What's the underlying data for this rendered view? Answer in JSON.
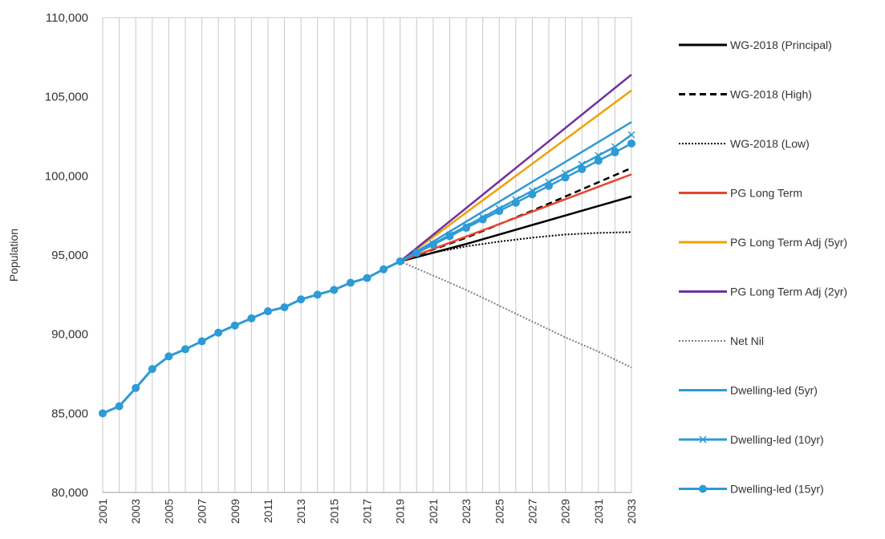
{
  "chart_data": {
    "type": "line",
    "title": "",
    "xlabel": "",
    "ylabel": "Population",
    "xlim": [
      2001,
      2033
    ],
    "ylim": [
      80000,
      110000
    ],
    "y_ticks": [
      80000,
      85000,
      90000,
      95000,
      100000,
      105000,
      110000
    ],
    "y_tick_labels": [
      "80,000",
      "85,000",
      "90,000",
      "95,000",
      "100,000",
      "105,000",
      "110,000"
    ],
    "x_tick_labels": [
      "2001",
      "2003",
      "2005",
      "2007",
      "2009",
      "2011",
      "2013",
      "2015",
      "2017",
      "2019",
      "2021",
      "2023",
      "2025",
      "2027",
      "2029",
      "2031",
      "2033"
    ],
    "grid": "vertical lines at every year",
    "legend_position": "right",
    "historic": {
      "x": [
        2001,
        2002,
        2003,
        2004,
        2005,
        2006,
        2007,
        2008,
        2009,
        2010,
        2011,
        2012,
        2013,
        2014,
        2015,
        2016,
        2017,
        2018,
        2019
      ],
      "y": [
        85000,
        85450,
        86600,
        87800,
        88600,
        89050,
        89550,
        90100,
        90550,
        91000,
        91450,
        91700,
        92200,
        92500,
        92800,
        93250,
        93550,
        94100,
        94600
      ]
    },
    "series": [
      {
        "name": "WG-2018 (Principal)",
        "color": "#000000",
        "style": "solid",
        "marker": "none",
        "x": [
          2019,
          2023,
          2027,
          2031,
          2033
        ],
        "y": [
          94600,
          95700,
          96900,
          98100,
          98700
        ]
      },
      {
        "name": "WG-2018 (High)",
        "color": "#000000",
        "style": "dashed",
        "marker": "none",
        "x": [
          2019,
          2023,
          2027,
          2031,
          2033
        ],
        "y": [
          94600,
          96100,
          97800,
          99600,
          100500
        ]
      },
      {
        "name": "WG-2018 (Low)",
        "color": "#000000",
        "style": "dotted",
        "marker": "none",
        "x": [
          2019,
          2021,
          2023,
          2025,
          2027,
          2029,
          2031,
          2033
        ],
        "y": [
          94600,
          95150,
          95550,
          95850,
          96100,
          96300,
          96400,
          96450
        ]
      },
      {
        "name": "PG Long Term",
        "color": "#e8452c",
        "style": "solid",
        "marker": "none",
        "x": [
          2019,
          2033
        ],
        "y": [
          94600,
          100100
        ]
      },
      {
        "name": "PG Long Term Adj (5yr)",
        "color": "#f0a000",
        "style": "solid",
        "marker": "none",
        "x": [
          2019,
          2033
        ],
        "y": [
          94600,
          105400
        ]
      },
      {
        "name": "PG Long Term Adj (2yr)",
        "color": "#7030a0",
        "style": "solid",
        "marker": "none",
        "x": [
          2019,
          2033
        ],
        "y": [
          94600,
          106400
        ]
      },
      {
        "name": "Net Nil",
        "color": "#808080",
        "style": "dotted",
        "marker": "none",
        "x": [
          2019,
          2021,
          2023,
          2025,
          2027,
          2029,
          2031,
          2033
        ],
        "y": [
          94600,
          93700,
          92800,
          91800,
          90800,
          89800,
          88900,
          87900
        ]
      },
      {
        "name": "Dwelling-led (5yr)",
        "color": "#2e9ad6",
        "style": "solid",
        "marker": "none",
        "x": [
          2019,
          2033
        ],
        "y": [
          94600,
          103400
        ]
      },
      {
        "name": "Dwelling-led (10yr)",
        "color": "#2e9ad6",
        "style": "solid",
        "marker": "x",
        "x": [
          2019,
          2020,
          2021,
          2022,
          2023,
          2024,
          2025,
          2026,
          2027,
          2028,
          2029,
          2030,
          2031,
          2032,
          2033
        ],
        "y": [
          94600,
          95160,
          95710,
          96270,
          96830,
          97390,
          97940,
          98500,
          99060,
          99610,
          100170,
          100730,
          101290,
          101840,
          102600
        ]
      },
      {
        "name": "Dwelling-led (15yr)",
        "color": "#2e9ad6",
        "style": "solid",
        "marker": "circle",
        "x": [
          2019,
          2020,
          2021,
          2022,
          2023,
          2024,
          2025,
          2026,
          2027,
          2028,
          2029,
          2030,
          2031,
          2032,
          2033
        ],
        "y": [
          94600,
          95130,
          95660,
          96190,
          96720,
          97250,
          97780,
          98310,
          98840,
          99370,
          99900,
          100430,
          100960,
          101490,
          102050
        ]
      }
    ]
  }
}
